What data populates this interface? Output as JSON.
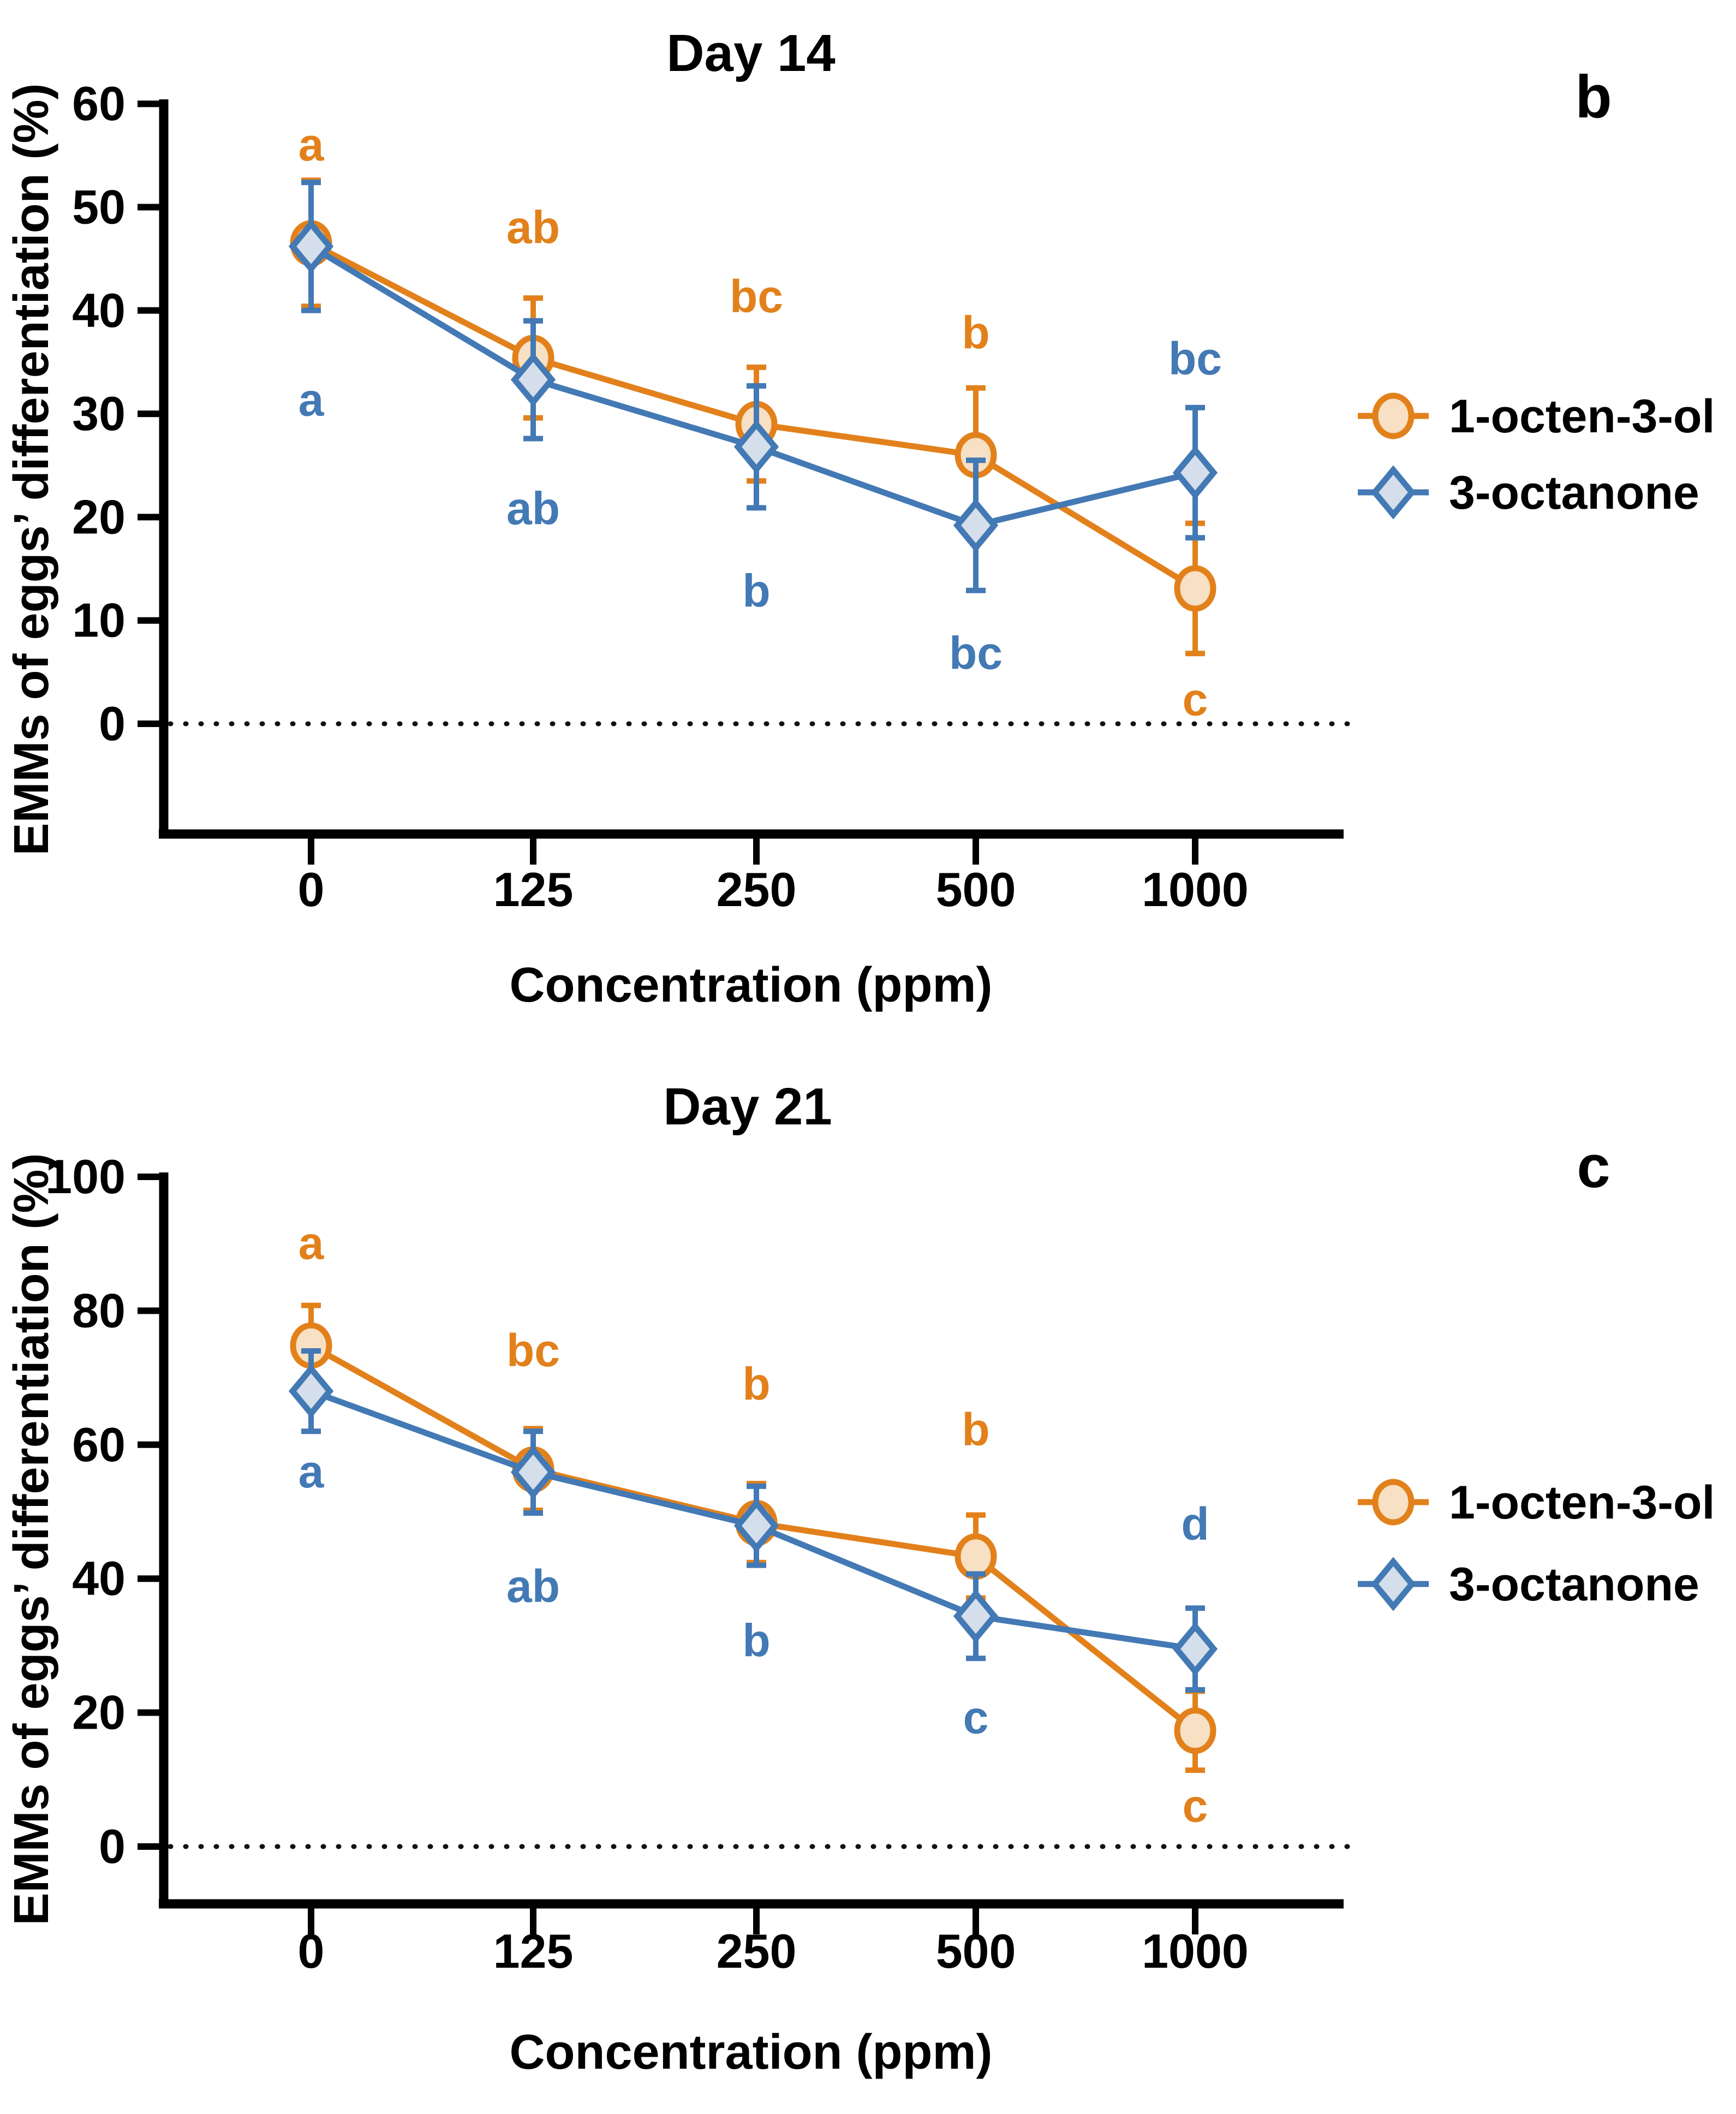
{
  "page": {
    "background": "#ffffff"
  },
  "chart_data": [
    {
      "type": "line",
      "title": "Day 14",
      "panel_letter": "b",
      "xlabel": "Concentration (ppm)",
      "ylabel": "EMMs of eggs’ differentiation (%)",
      "categories": [
        "0",
        "125",
        "250",
        "500",
        "1000"
      ],
      "yticks": [
        0,
        10,
        20,
        30,
        40,
        50,
        60
      ],
      "ylim": [
        -10,
        60
      ],
      "zero_line": true,
      "grid": false,
      "legend_position": "right",
      "axis_color": "#000000",
      "zero_line_color": "#111111",
      "legend": [
        {
          "label": "1-octen-3-ol",
          "marker": "circle",
          "color": "#E2811B",
          "fill": "#F7E0C3"
        },
        {
          "label": "3-octanone",
          "marker": "diamond",
          "color": "#4379B4",
          "fill": "#D4DFEB"
        }
      ],
      "series": [
        {
          "name": "1-octen-3-ol",
          "marker": "circle",
          "color": "#E2811B",
          "fill": "#F7E0C3",
          "values": [
            46.5,
            35.4,
            29.0,
            26.0,
            13.1
          ],
          "errors": [
            6.1,
            5.8,
            5.5,
            6.5,
            6.3
          ],
          "letters": [
            {
              "text": "a",
              "y": 56.0
            },
            {
              "text": "ab",
              "y": 48.0
            },
            {
              "text": "bc",
              "y": 41.3
            },
            {
              "text": "b",
              "y": 37.8
            },
            {
              "text": "c",
              "y": 2.3
            }
          ]
        },
        {
          "name": "3-octanone",
          "marker": "diamond",
          "color": "#4379B4",
          "fill": "#D4DFEB",
          "values": [
            46.2,
            33.3,
            26.8,
            19.2,
            24.3
          ],
          "errors": [
            6.2,
            5.7,
            5.9,
            6.3,
            6.3
          ],
          "letters": [
            {
              "text": "a",
              "y": 31.3
            },
            {
              "text": "ab",
              "y": 20.8
            },
            {
              "text": "b",
              "y": 12.8
            },
            {
              "text": "bc",
              "y": 6.8
            },
            {
              "text": "bc",
              "y": 35.3
            }
          ]
        }
      ]
    },
    {
      "type": "line",
      "title": "Day 21",
      "panel_letter": "c",
      "xlabel": "Concentration (ppm)",
      "ylabel": "EMMs of eggs’ differentiation (%)",
      "categories": [
        "0",
        "125",
        "250",
        "500",
        "1000"
      ],
      "yticks": [
        0,
        20,
        40,
        60,
        80,
        100
      ],
      "ylim": [
        -8.5,
        100
      ],
      "zero_line": true,
      "grid": false,
      "legend_position": "right",
      "axis_color": "#000000",
      "zero_line_color": "#111111",
      "legend": [
        {
          "label": "1-octen-3-ol",
          "marker": "circle",
          "color": "#E2811B",
          "fill": "#F7E0C3"
        },
        {
          "label": "3-octanone",
          "marker": "diamond",
          "color": "#4379B4",
          "fill": "#D4DFEB"
        }
      ],
      "series": [
        {
          "name": "1-octen-3-ol",
          "marker": "circle",
          "color": "#E2811B",
          "fill": "#F7E0C3",
          "values": [
            74.8,
            56.3,
            48.3,
            43.3,
            17.3
          ],
          "errors": [
            6.0,
            6.1,
            5.9,
            6.2,
            5.9
          ],
          "letters": [
            {
              "text": "a",
              "y": 90.0
            },
            {
              "text": "bc",
              "y": 74.0
            },
            {
              "text": "b",
              "y": 69.0
            },
            {
              "text": "b",
              "y": 62.2
            },
            {
              "text": "c",
              "y": 6.0
            }
          ]
        },
        {
          "name": "3-octanone",
          "marker": "diamond",
          "color": "#4379B4",
          "fill": "#D4DFEB",
          "values": [
            68.0,
            55.9,
            47.9,
            34.4,
            29.5
          ],
          "errors": [
            6.0,
            6.1,
            5.9,
            6.3,
            6.1
          ],
          "letters": [
            {
              "text": "a",
              "y": 55.9
            },
            {
              "text": "ab",
              "y": 38.8
            },
            {
              "text": "b",
              "y": 30.7
            },
            {
              "text": "c",
              "y": 19.2
            },
            {
              "text": "d",
              "y": 48.1
            }
          ]
        }
      ]
    }
  ]
}
